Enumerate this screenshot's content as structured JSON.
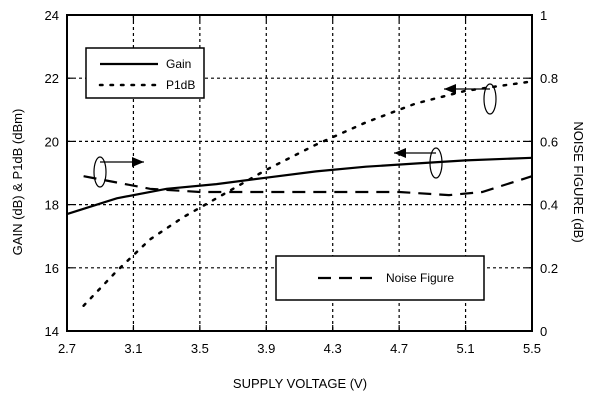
{
  "chart_data": {
    "type": "line",
    "xlabel": "SUPPLY VOLTAGE (V)",
    "ylabel_left": "GAIN (dB) & P1dB (dBm)",
    "ylabel_right": "NOISE FIGURE (dB)",
    "xlim": [
      2.7,
      5.5
    ],
    "ylim_left": [
      14,
      24
    ],
    "ylim_right": [
      0,
      1
    ],
    "x_ticks": [
      "2.7",
      "3.1",
      "3.5",
      "3.9",
      "4.3",
      "4.7",
      "5.1",
      "5.5"
    ],
    "y_ticks_left": [
      "14",
      "16",
      "18",
      "20",
      "22",
      "24"
    ],
    "y_ticks_right": [
      "0",
      "0.2",
      "0.4",
      "0.6",
      "0.8",
      "1"
    ],
    "grid": true,
    "series": [
      {
        "name": "Gain",
        "axis": "left",
        "style": "solid",
        "x": [
          2.7,
          3.0,
          3.3,
          3.6,
          3.9,
          4.2,
          4.5,
          4.8,
          5.1,
          5.5
        ],
        "y": [
          17.7,
          18.2,
          18.5,
          18.65,
          18.85,
          19.05,
          19.2,
          19.3,
          19.4,
          19.48
        ]
      },
      {
        "name": "P1dB",
        "axis": "left",
        "style": "dotted",
        "x": [
          2.8,
          3.0,
          3.2,
          3.4,
          3.6,
          3.9,
          4.2,
          4.5,
          4.8,
          5.1,
          5.5
        ],
        "y": [
          14.8,
          15.9,
          16.9,
          17.6,
          18.2,
          19.1,
          19.9,
          20.6,
          21.2,
          21.6,
          21.9
        ]
      },
      {
        "name": "Noise Figure",
        "axis": "right",
        "style": "dashed",
        "x": [
          2.8,
          3.0,
          3.2,
          3.5,
          3.9,
          4.3,
          4.7,
          5.0,
          5.2,
          5.5
        ],
        "y": [
          0.49,
          0.47,
          0.45,
          0.44,
          0.44,
          0.44,
          0.44,
          0.43,
          0.44,
          0.49
        ]
      }
    ],
    "legend": {
      "top_box": [
        "Gain",
        "P1dB"
      ],
      "bottom_box": [
        "Noise Figure"
      ]
    }
  }
}
